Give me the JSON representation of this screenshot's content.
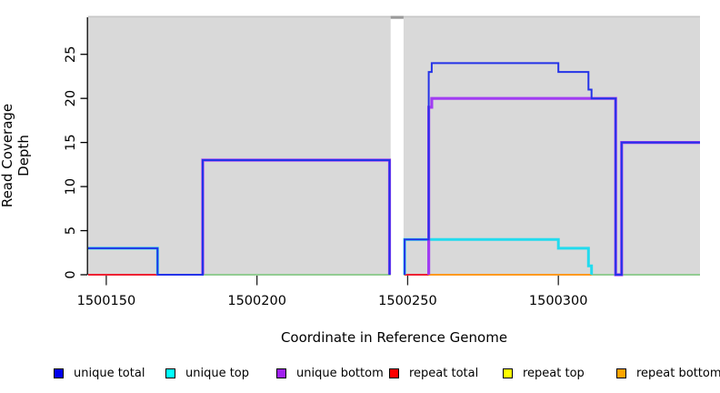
{
  "chart_data": {
    "type": "line",
    "style": "step-coverage-plot",
    "title": "",
    "xlabel": "Coordinate in Reference Genome",
    "ylabel": "Read Coverage Depth",
    "xlim": [
      1500144,
      1500347
    ],
    "ylim": [
      0,
      29.2
    ],
    "x_ticks": [
      1500150,
      1500200,
      1500250,
      1500300
    ],
    "y_ticks": [
      0,
      5,
      10,
      15,
      20,
      25
    ],
    "grid": false,
    "plot_bg_color": "#d9d9d9",
    "no_data_gap": {
      "from": 1500244,
      "to": 1500249
    },
    "zero_reference_line": {
      "color": "#7cc87c",
      "depth": 0,
      "x_range": [
        1500144,
        1500347
      ]
    },
    "series": [
      {
        "name": "zero reference",
        "color": "#7cc87c",
        "in_legend": false,
        "paths": [
          [
            [
              1500144,
              0
            ],
            [
              1500347,
              0
            ]
          ]
        ]
      },
      {
        "name": "repeat total",
        "color": "#ee2233",
        "in_legend": true,
        "paths": [
          [
            [
              1500144,
              0
            ],
            [
              1500167,
              0
            ]
          ],
          [
            [
              1500249,
              0
            ],
            [
              1500257,
              0
            ]
          ]
        ]
      },
      {
        "name": "repeat top",
        "color": "#ffff00",
        "in_legend": true,
        "paths": []
      },
      {
        "name": "repeat bottom",
        "color": "#ff9a1e",
        "in_legend": true,
        "paths": [
          [
            [
              1500257,
              0
            ],
            [
              1500311,
              0
            ]
          ]
        ]
      },
      {
        "name": "unique top",
        "color": "#22dbee",
        "in_legend": true,
        "paths": [
          [
            [
              1500144,
              3
            ],
            [
              1500167,
              3
            ],
            [
              1500167,
              0
            ]
          ],
          [
            [
              1500249,
              0
            ],
            [
              1500249,
              4
            ],
            [
              1500300,
              4
            ],
            [
              1500300,
              3
            ],
            [
              1500310,
              3
            ],
            [
              1500310,
              1
            ],
            [
              1500311,
              1
            ],
            [
              1500311,
              0
            ]
          ]
        ]
      },
      {
        "name": "unique bottom",
        "color": "#a13cf2",
        "in_legend": true,
        "paths": [
          [
            [
              1500182,
              0
            ],
            [
              1500182,
              13
            ],
            [
              1500244,
              13
            ],
            [
              1500244,
              0
            ]
          ],
          [
            [
              1500257,
              0
            ],
            [
              1500257,
              19
            ],
            [
              1500258,
              19
            ],
            [
              1500258,
              20
            ],
            [
              1500319,
              20
            ],
            [
              1500319,
              0
            ],
            [
              1500321,
              0
            ],
            [
              1500321,
              15
            ],
            [
              1500347,
              15
            ]
          ]
        ]
      },
      {
        "name": "unique total",
        "color": "#2433e8",
        "in_legend": true,
        "paths": [
          [
            [
              1500144,
              3
            ],
            [
              1500167,
              3
            ],
            [
              1500167,
              0
            ],
            [
              1500182,
              0
            ],
            [
              1500182,
              13
            ],
            [
              1500244,
              13
            ],
            [
              1500244,
              0
            ]
          ],
          [
            [
              1500249,
              0
            ],
            [
              1500249,
              4
            ],
            [
              1500257,
              4
            ],
            [
              1500257,
              23
            ],
            [
              1500258,
              23
            ],
            [
              1500258,
              24
            ],
            [
              1500300,
              24
            ],
            [
              1500300,
              23
            ],
            [
              1500310,
              23
            ],
            [
              1500310,
              21
            ],
            [
              1500311,
              21
            ],
            [
              1500311,
              20
            ],
            [
              1500319,
              20
            ],
            [
              1500319,
              0
            ],
            [
              1500321,
              0
            ],
            [
              1500321,
              15
            ],
            [
              1500347,
              15
            ]
          ]
        ]
      }
    ],
    "legend": [
      {
        "label": "unique total",
        "color": "#0000ee"
      },
      {
        "label": "unique top",
        "color": "#00ffff"
      },
      {
        "label": "unique bottom",
        "color": "#a020f0"
      },
      {
        "label": "repeat total",
        "color": "#ff0000"
      },
      {
        "label": "repeat top",
        "color": "#ffff00"
      },
      {
        "label": "repeat bottom",
        "color": "#ffa500"
      }
    ],
    "legend_position": "bottom"
  }
}
